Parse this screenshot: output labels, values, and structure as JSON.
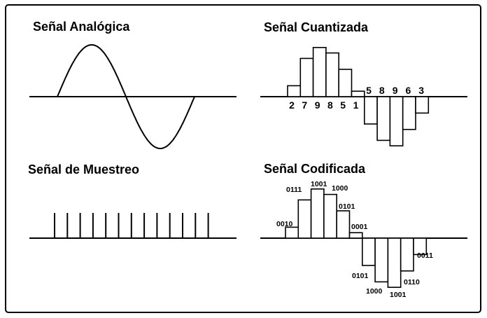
{
  "panels": {
    "analog": {
      "title": "Señal Analógica"
    },
    "quantized": {
      "title": "Señal Cuantizada",
      "positive": [
        2,
        7,
        9,
        8,
        5,
        1
      ],
      "negative": [
        5,
        8,
        9,
        6,
        3
      ]
    },
    "sampling": {
      "title": "Señal de Muestreo"
    },
    "coded": {
      "title": "Señal Codificada",
      "positive": [
        "0010",
        "0111",
        "1001",
        "1000",
        "0101",
        "0001"
      ],
      "negative": [
        "0101",
        "1000",
        "1001",
        "0110",
        "0011"
      ]
    }
  }
}
